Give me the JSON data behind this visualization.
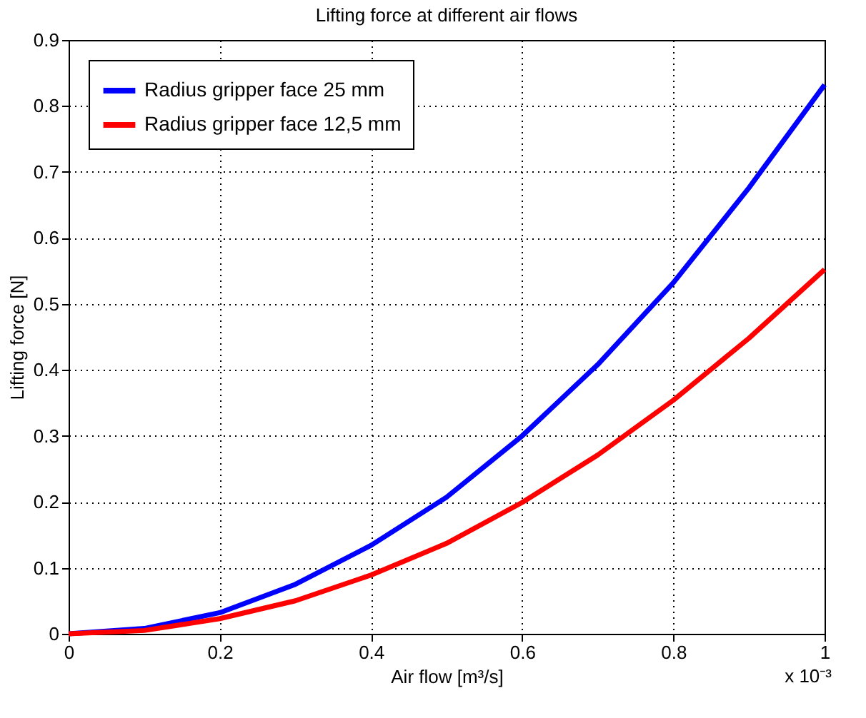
{
  "chart_data": {
    "type": "line",
    "title": "Lifting force at different air flows",
    "xlabel": "Air flow [m³/s]",
    "ylabel": "Lifting force [N]",
    "x": [
      0,
      0.1,
      0.2,
      0.3,
      0.4,
      0.5,
      0.6,
      0.7,
      0.8,
      0.9,
      1.0
    ],
    "series": [
      {
        "name": "Radius gripper face 25 mm",
        "color": "#0000ff",
        "values": [
          0,
          0.008,
          0.032,
          0.075,
          0.134,
          0.207,
          0.3,
          0.408,
          0.532,
          0.676,
          0.832
        ]
      },
      {
        "name": "Radius gripper face 12,5 mm",
        "color": "#ff0000",
        "values": [
          0,
          0.005,
          0.023,
          0.05,
          0.089,
          0.137,
          0.199,
          0.271,
          0.354,
          0.448,
          0.552
        ]
      }
    ],
    "xlim": [
      0,
      1
    ],
    "xticks": [
      0,
      0.2,
      0.4,
      0.6,
      0.8,
      1
    ],
    "ylim": [
      0,
      0.9
    ],
    "yticks": [
      0,
      0.1,
      0.2,
      0.3,
      0.4,
      0.5,
      0.6,
      0.7,
      0.8,
      0.9
    ],
    "annotations": [
      "x 10⁻³"
    ],
    "grid": true,
    "legend": "top left",
    "marker": "none",
    "line_style": "solid"
  }
}
